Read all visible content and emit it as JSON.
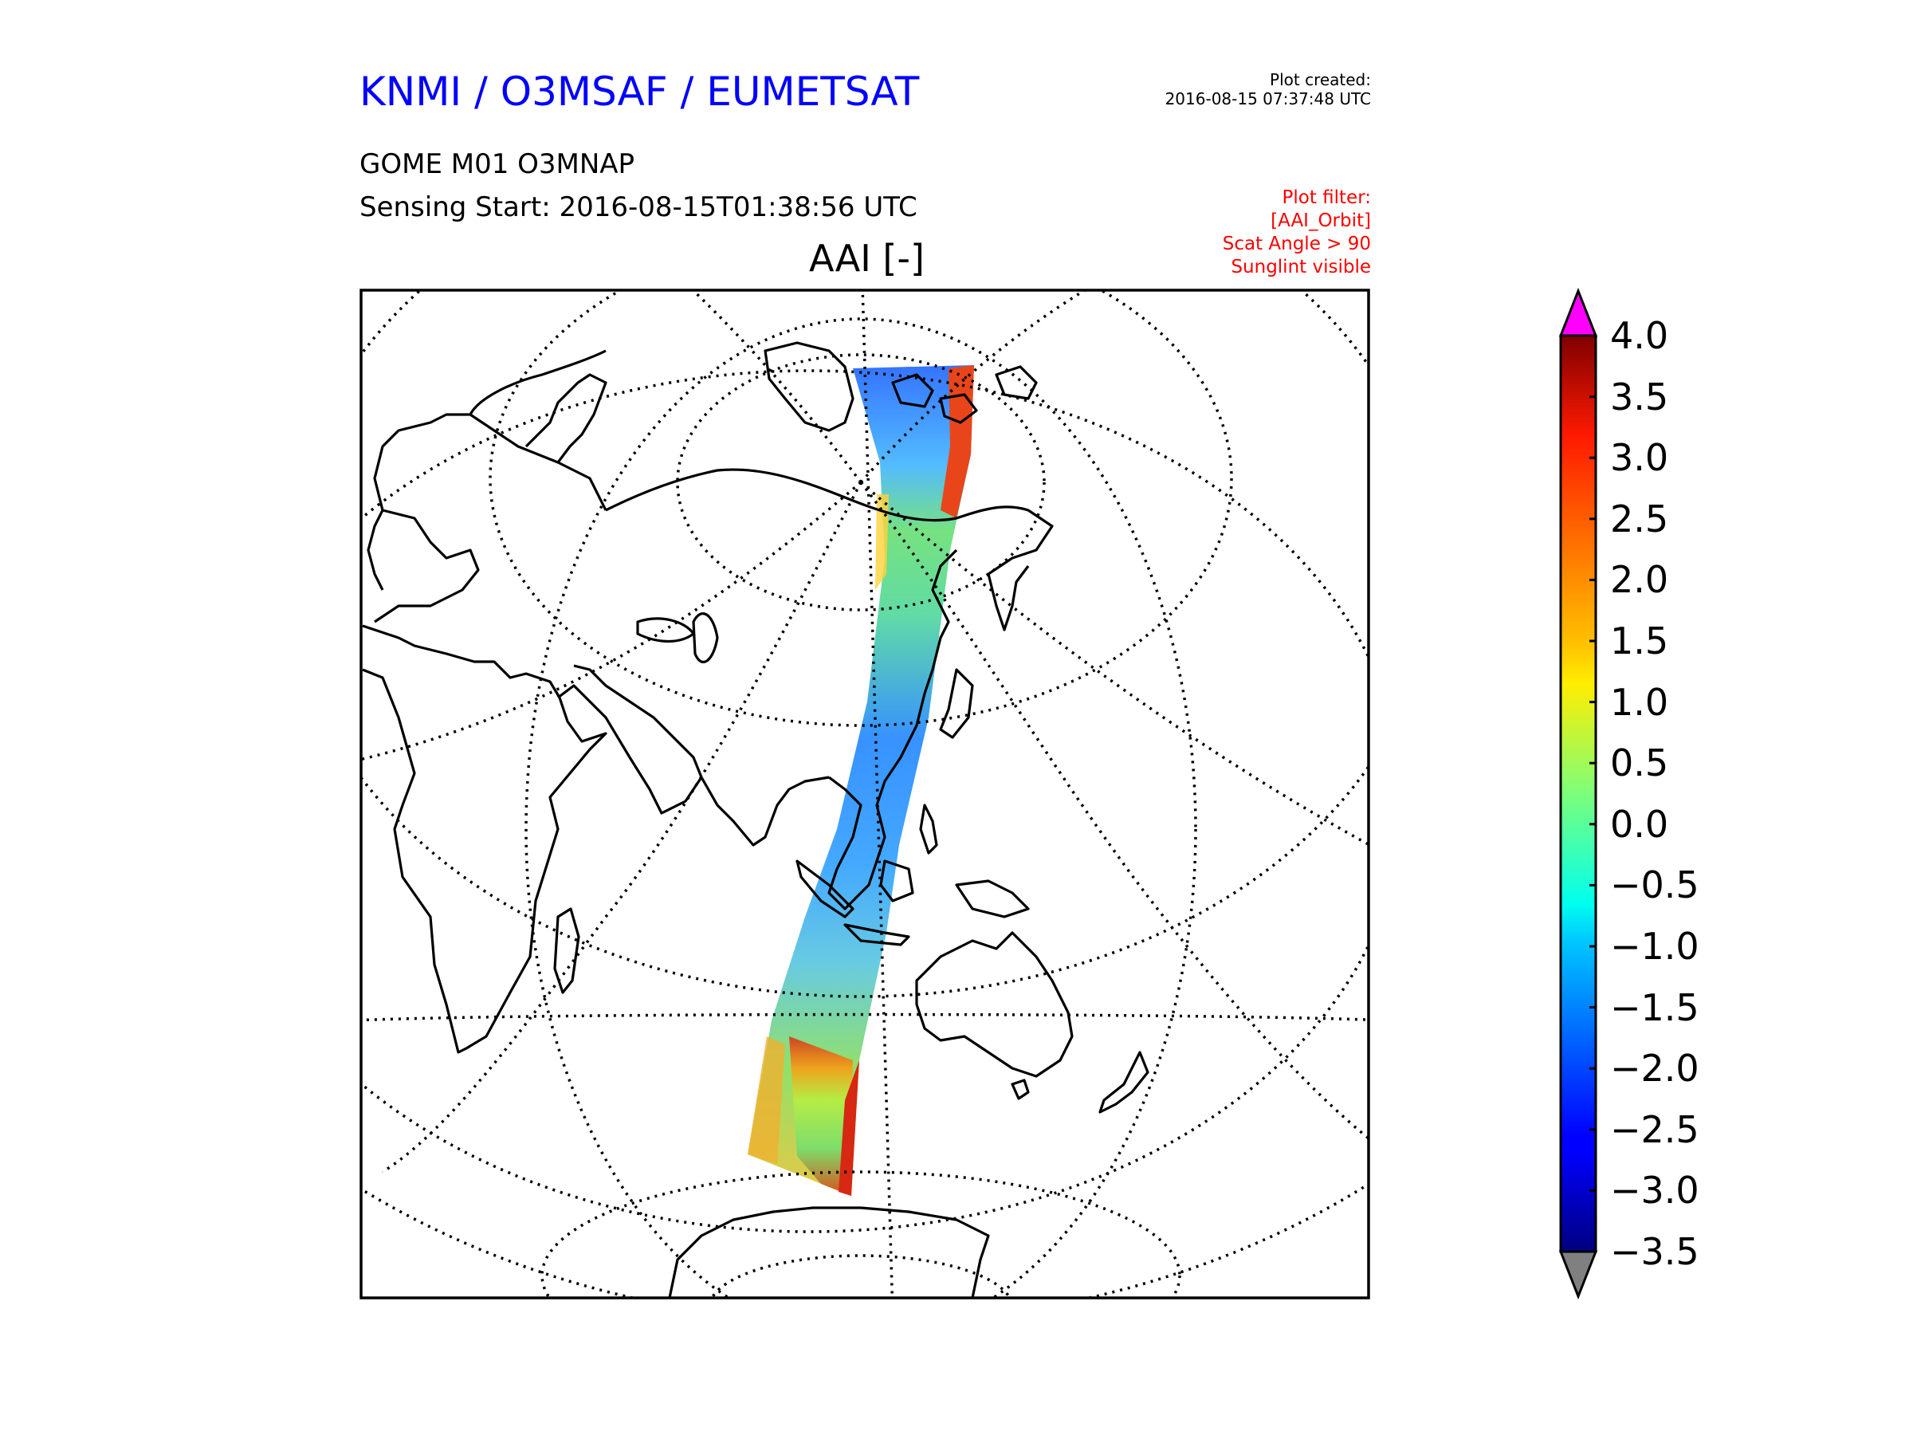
{
  "header": {
    "org_title": "KNMI / O3MSAF / EUMETSAT",
    "created_label": "Plot created:",
    "created_time": "2016-08-15 07:37:48 UTC",
    "product": "GOME M01 O3MNAP",
    "sensing": "Sensing Start: 2016-08-15T01:38:56 UTC",
    "variable_title": "AAI [-]",
    "filter_lines": [
      "Plot filter:",
      "[AAI_Orbit]",
      "Scat Angle > 90",
      "Sunglint visible"
    ]
  },
  "colors": {
    "title_blue": "#0000ff",
    "filter_red": "#ff0000",
    "over_color": "#ff00ff",
    "under_color": "#808080"
  },
  "colorbar": {
    "min": -3.5,
    "max": 4.0,
    "extend": "both",
    "colormap": "jet",
    "ticks": [
      "4.0",
      "3.5",
      "3.0",
      "2.5",
      "2.0",
      "1.5",
      "1.0",
      "0.5",
      "0.0",
      "−0.5",
      "−1.0",
      "−1.5",
      "−2.0",
      "−2.5",
      "−3.0",
      "−3.5"
    ]
  }
}
